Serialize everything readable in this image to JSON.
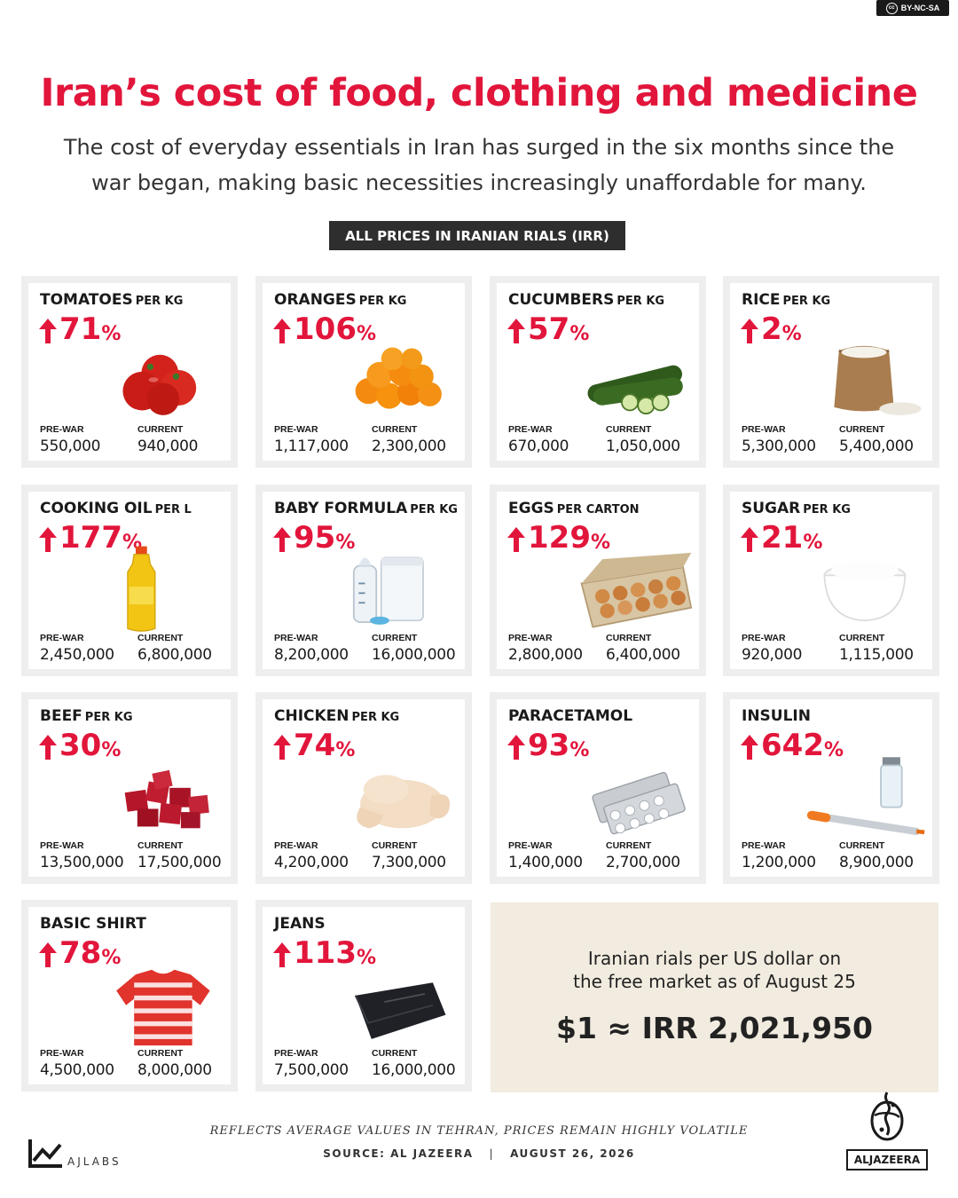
{
  "license": "BY-NC-SA",
  "title": "Iran’s cost of food, clothing and medicine",
  "subtitle_line1": "The cost of everyday essentials in Iran has surged in the six months since the",
  "subtitle_line2": "war began, making basic necessities increasingly unaffordable for many.",
  "units_badge": "ALL PRICES IN IRANIAN RIALS (IRR)",
  "labels": {
    "prewar": "PRE-WAR",
    "current": "CURRENT",
    "pct": "%"
  },
  "accent_color": "#e2153b",
  "items": [
    {
      "name": "TOMATOES",
      "unit": "PER KG",
      "change": "71",
      "prewar": "550,000",
      "current": "940,000",
      "icon": "tomatoes-icon"
    },
    {
      "name": "ORANGES",
      "unit": "PER KG",
      "change": "106",
      "prewar": "1,117,000",
      "current": "2,300,000",
      "icon": "oranges-icon"
    },
    {
      "name": "CUCUMBERS",
      "unit": "PER KG",
      "change": "57",
      "prewar": "670,000",
      "current": "1,050,000",
      "icon": "cucumbers-icon"
    },
    {
      "name": "RICE",
      "unit": "PER KG",
      "change": "2",
      "prewar": "5,300,000",
      "current": "5,400,000",
      "icon": "rice-sack-icon"
    },
    {
      "name": "COOKING OIL",
      "unit": "PER L",
      "change": "177",
      "prewar": "2,450,000",
      "current": "6,800,000",
      "icon": "oil-bottle-icon"
    },
    {
      "name": "BABY FORMULA",
      "unit": "PER KG",
      "change": "95",
      "prewar": "8,200,000",
      "current": "16,000,000",
      "icon": "baby-formula-icon"
    },
    {
      "name": "EGGS",
      "unit": "PER CARTON",
      "change": "129",
      "prewar": "2,800,000",
      "current": "6,400,000",
      "icon": "egg-carton-icon"
    },
    {
      "name": "SUGAR",
      "unit": "PER KG",
      "change": "21",
      "prewar": "920,000",
      "current": "1,115,000",
      "icon": "sugar-bowl-icon"
    },
    {
      "name": "BEEF",
      "unit": "PER KG",
      "change": "30",
      "prewar": "13,500,000",
      "current": "17,500,000",
      "icon": "beef-cubes-icon"
    },
    {
      "name": "CHICKEN",
      "unit": "PER KG",
      "change": "74",
      "prewar": "4,200,000",
      "current": "7,300,000",
      "icon": "chicken-icon"
    },
    {
      "name": "PARACETAMOL",
      "unit": "",
      "change": "93",
      "prewar": "1,400,000",
      "current": "2,700,000",
      "icon": "pill-blister-icon"
    },
    {
      "name": "INSULIN",
      "unit": "",
      "change": "642",
      "prewar": "1,200,000",
      "current": "8,900,000",
      "icon": "insulin-syringe-icon"
    },
    {
      "name": "BASIC SHIRT",
      "unit": "",
      "change": "78",
      "prewar": "4,500,000",
      "current": "8,000,000",
      "icon": "shirt-icon"
    },
    {
      "name": "JEANS",
      "unit": "",
      "change": "113",
      "prewar": "7,500,000",
      "current": "16,000,000",
      "icon": "jeans-icon"
    }
  ],
  "fx": {
    "line1": "Iranian rials per US dollar on",
    "line2": "the free market as of August 25",
    "value": "$1 ≈ IRR 2,021,950"
  },
  "footer": {
    "note": "REFLECTS AVERAGE VALUES IN TEHRAN, PRICES REMAIN HIGHLY VOLATILE",
    "source": "SOURCE: AL JAZEERA",
    "separator": "|",
    "date": "AUGUST 26, 2026",
    "ajlabs": "AJLABS",
    "brand": "ALJAZEERA"
  }
}
